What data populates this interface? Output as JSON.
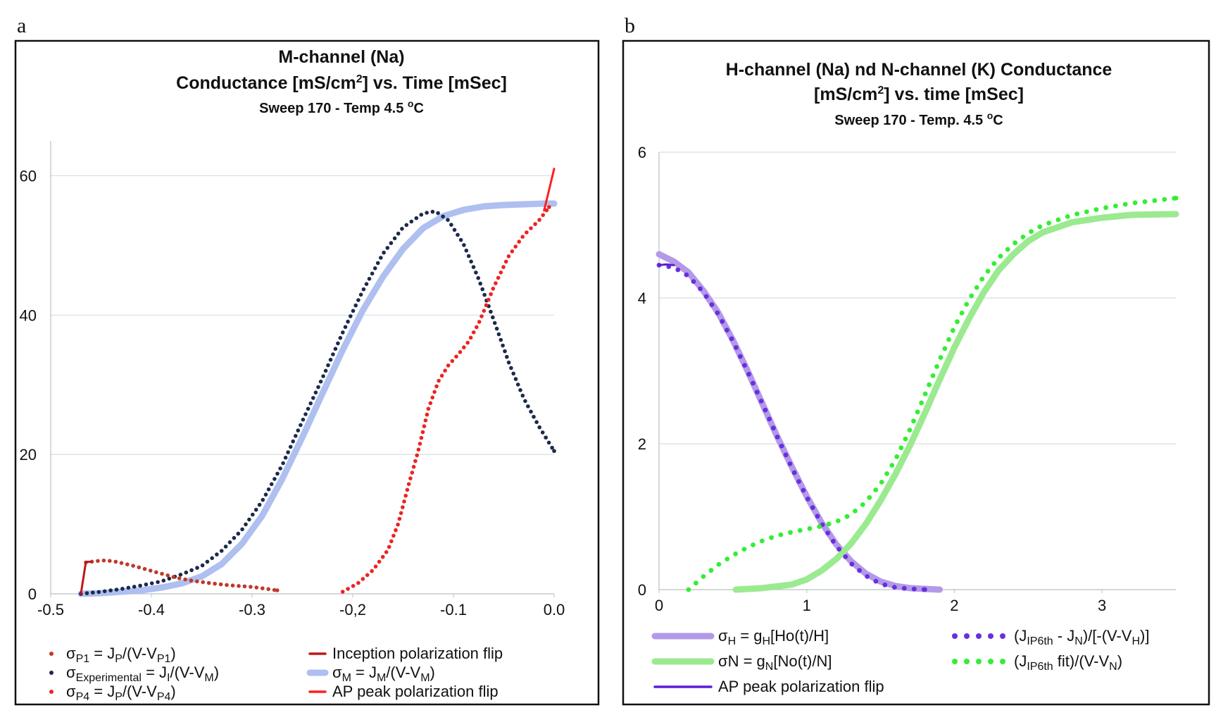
{
  "chart_data": [
    {
      "panel": "a",
      "type": "line",
      "title": {
        "line1": "M-channel (Na)",
        "line2_pre": "Conductance [mS/cm",
        "line2_sup": "2",
        "line2_post": "]  vs. Time [mSec]",
        "line3_pre": "Sweep 170 - Temp 4.5 ",
        "line3_sup": "o",
        "line3_post": "C"
      },
      "xlim": [
        -0.5,
        0.0
      ],
      "ylim": [
        0,
        65
      ],
      "xticks": [
        "-0.5",
        "-0.4",
        "-0.3",
        "-0,2",
        "-0.1",
        "0.0"
      ],
      "xtick_values": [
        -0.5,
        -0.4,
        -0.3,
        -0.2,
        -0.1,
        0.0
      ],
      "yticks": [
        "0",
        "20",
        "40",
        "60"
      ],
      "ytick_values": [
        0,
        20,
        40,
        60
      ],
      "series": [
        {
          "key": "sigmaM",
          "name": "σM = JM/(V-VM)",
          "style": "thick-line",
          "color": "#aebff0",
          "x": [
            -0.47,
            -0.45,
            -0.43,
            -0.41,
            -0.39,
            -0.37,
            -0.35,
            -0.33,
            -0.31,
            -0.29,
            -0.27,
            -0.25,
            -0.23,
            -0.21,
            -0.19,
            -0.17,
            -0.15,
            -0.13,
            -0.11,
            -0.09,
            -0.07,
            -0.05,
            -0.03,
            -0.01,
            0.0
          ],
          "y": [
            0,
            0.1,
            0.3,
            0.5,
            0.9,
            1.5,
            2.5,
            4.3,
            7.2,
            11.2,
            16.5,
            22.5,
            28.8,
            35.0,
            40.7,
            45.5,
            49.5,
            52.5,
            54.2,
            55.1,
            55.6,
            55.8,
            55.9,
            56.0,
            56.0
          ]
        },
        {
          "key": "sigmaExp",
          "name": "σExperimental = JI/(V-VM)",
          "style": "dots",
          "color": "#1b2a4a",
          "x": [
            -0.47,
            -0.45,
            -0.43,
            -0.41,
            -0.39,
            -0.37,
            -0.35,
            -0.33,
            -0.31,
            -0.29,
            -0.27,
            -0.25,
            -0.23,
            -0.21,
            -0.19,
            -0.17,
            -0.15,
            -0.13,
            -0.118,
            -0.105,
            -0.09,
            -0.075,
            -0.06,
            -0.045,
            -0.03,
            -0.015,
            0.0
          ],
          "y": [
            0,
            0.3,
            0.7,
            1.2,
            1.8,
            2.8,
            4.0,
            6.2,
            9.2,
            13.3,
            18.5,
            24.8,
            31.0,
            37.5,
            43.5,
            48.8,
            52.6,
            54.6,
            54.9,
            53.6,
            50.2,
            45.2,
            39.3,
            33.2,
            28.0,
            24.0,
            20.5
          ]
        },
        {
          "key": "sigmaP1",
          "name": "σP1 = JP/(V-VP1)",
          "style": "dots",
          "color": "#c0392b",
          "x": [
            -0.465,
            -0.455,
            -0.445,
            -0.435,
            -0.42,
            -0.405,
            -0.39,
            -0.375,
            -0.36,
            -0.34,
            -0.32,
            -0.3,
            -0.275
          ],
          "y": [
            4.5,
            4.7,
            4.8,
            4.6,
            4.1,
            3.5,
            2.9,
            2.3,
            1.9,
            1.5,
            1.2,
            1.0,
            0.5
          ]
        },
        {
          "key": "sigmaP4",
          "name": "σP4 = JP/(V-VP4)",
          "style": "dots",
          "color": "#ee2222",
          "x": [
            -0.21,
            -0.195,
            -0.18,
            -0.165,
            -0.155,
            -0.145,
            -0.135,
            -0.125,
            -0.115,
            -0.105,
            -0.095,
            -0.085,
            -0.075,
            -0.06,
            -0.045,
            -0.03,
            -0.015,
            -0.005
          ],
          "y": [
            0.3,
            1.5,
            3.4,
            6.3,
            10.0,
            15.4,
            20.5,
            26.5,
            30.5,
            32.8,
            34.4,
            36.2,
            38.8,
            44.0,
            48.5,
            51.5,
            53.6,
            55.5
          ]
        },
        {
          "key": "inception",
          "name": "Inception polarization flip",
          "style": "line",
          "color": "#c01818",
          "x": [
            -0.47,
            -0.465,
            -0.46
          ],
          "y": [
            0,
            4.6,
            4.6
          ]
        },
        {
          "key": "apPeak",
          "name": "AP peak polarization flip",
          "style": "line",
          "color": "#ff2020",
          "x": [
            -0.01,
            -0.005,
            0.0
          ],
          "y": [
            55.0,
            58.0,
            61.0
          ]
        }
      ],
      "legend": [
        {
          "key": "sigmaP1",
          "pre": "σ",
          "sub": "P1",
          "mid": " = J",
          "sub2": "P",
          "post": "/(V-V",
          "sub3": "P1",
          "end": ")"
        },
        {
          "key": "sigmaExp",
          "pre": "σ",
          "sub": "Experimental",
          "mid": " = J",
          "sub2": "I",
          "post": "/(V-V",
          "sub3": "M",
          "end": ")"
        },
        {
          "key": "sigmaP4",
          "pre": "σ",
          "sub": "P4",
          "mid": " = J",
          "sub2": "P",
          "post": "/(V-V",
          "sub3": "P4",
          "end": ")"
        },
        {
          "key": "inception",
          "pre": "Inception polarization flip",
          "sub": "",
          "mid": "",
          "sub2": "",
          "post": "",
          "sub3": "",
          "end": ""
        },
        {
          "key": "sigmaM",
          "pre": "σ",
          "sub": "M",
          "mid": " = J",
          "sub2": "M",
          "post": "/(V-V",
          "sub3": "M",
          "end": ")"
        },
        {
          "key": "apPeak",
          "pre": "AP peak polarization flip",
          "sub": "",
          "mid": "",
          "sub2": "",
          "post": "",
          "sub3": "",
          "end": ""
        }
      ]
    },
    {
      "panel": "b",
      "type": "line",
      "title": {
        "line1": "H-channel (Na) nd N-channel (K) Conductance",
        "line2_pre": "[mS/cm",
        "line2_sup": "2",
        "line2_post": "]  vs. time [mSec]",
        "line3_pre": "Sweep 170 - Temp. 4.5 ",
        "line3_sup": "o",
        "line3_post": "C"
      },
      "xlim": [
        0,
        3.5
      ],
      "ylim": [
        0,
        6
      ],
      "xticks": [
        "0",
        "1",
        "2",
        "3"
      ],
      "xtick_values": [
        0,
        1,
        2,
        3
      ],
      "yticks": [
        "0",
        "2",
        "4",
        "6"
      ],
      "ytick_values": [
        0,
        2,
        4,
        6
      ],
      "series": [
        {
          "key": "sigmaH",
          "name": "σH = gH[Ho(t)/H]",
          "style": "thick-line",
          "color": "#b39ae8",
          "x": [
            0,
            0.1,
            0.2,
            0.3,
            0.4,
            0.5,
            0.6,
            0.7,
            0.8,
            0.9,
            1.0,
            1.1,
            1.2,
            1.3,
            1.4,
            1.5,
            1.6,
            1.7,
            1.8,
            1.9
          ],
          "y": [
            4.6,
            4.5,
            4.35,
            4.1,
            3.8,
            3.42,
            3.0,
            2.55,
            2.1,
            1.68,
            1.28,
            0.92,
            0.62,
            0.39,
            0.22,
            0.11,
            0.05,
            0.02,
            0.01,
            0.0
          ]
        },
        {
          "key": "sigmaN",
          "name": "σN = gN[No(t)/N]",
          "style": "thick-line",
          "color": "#9bea90",
          "x": [
            0.52,
            0.7,
            0.9,
            1.0,
            1.1,
            1.2,
            1.3,
            1.4,
            1.5,
            1.6,
            1.7,
            1.8,
            1.9,
            2.0,
            2.1,
            2.2,
            2.3,
            2.4,
            2.5,
            2.6,
            2.8,
            3.0,
            3.2,
            3.5
          ],
          "y": [
            0.0,
            0.02,
            0.07,
            0.14,
            0.26,
            0.42,
            0.63,
            0.9,
            1.22,
            1.58,
            1.98,
            2.42,
            2.88,
            3.32,
            3.72,
            4.08,
            4.38,
            4.6,
            4.78,
            4.9,
            5.04,
            5.1,
            5.14,
            5.15
          ]
        },
        {
          "key": "hFit",
          "name": "(JIP6th - JN)/[-(V-VH)]",
          "style": "dots",
          "color": "#6a2ee0",
          "x": [
            0,
            0.1,
            0.2,
            0.3,
            0.4,
            0.5,
            0.6,
            0.7,
            0.8,
            0.9,
            1.0,
            1.1,
            1.2,
            1.3,
            1.4,
            1.5,
            1.6,
            1.7,
            1.8
          ],
          "y": [
            4.45,
            4.42,
            4.3,
            4.08,
            3.78,
            3.41,
            2.99,
            2.55,
            2.1,
            1.67,
            1.27,
            0.91,
            0.6,
            0.36,
            0.19,
            0.08,
            0.03,
            0.01,
            0.0
          ]
        },
        {
          "key": "nFit",
          "name": "(JIP6th fit)/(V-VN)",
          "style": "dots",
          "color": "#33ee33",
          "x": [
            0.2,
            0.3,
            0.4,
            0.5,
            0.6,
            0.7,
            0.8,
            0.9,
            1.0,
            1.1,
            1.2,
            1.3,
            1.4,
            1.5,
            1.6,
            1.7,
            1.8,
            1.9,
            2.0,
            2.1,
            2.2,
            2.3,
            2.4,
            2.5,
            2.6,
            2.8,
            3.0,
            3.2,
            3.5
          ],
          "y": [
            0.0,
            0.18,
            0.34,
            0.47,
            0.58,
            0.67,
            0.74,
            0.79,
            0.83,
            0.87,
            0.93,
            1.03,
            1.2,
            1.45,
            1.78,
            2.2,
            2.67,
            3.15,
            3.6,
            3.98,
            4.3,
            4.55,
            4.74,
            4.89,
            5.0,
            5.14,
            5.23,
            5.3,
            5.37
          ]
        },
        {
          "key": "apPeakB",
          "name": "AP  peak polarization flip",
          "style": "line",
          "color": "#5a1fd8",
          "x": [
            0,
            0.05,
            0.1
          ],
          "y": [
            4.45,
            4.46,
            4.45
          ]
        }
      ],
      "legend": [
        {
          "key": "sigmaH",
          "pre": "σ",
          "sub": "H",
          "mid": " = g",
          "sub2": "H",
          "post": "[Ho(t)/H]",
          "sub3": "",
          "end": ""
        },
        {
          "key": "sigmaN",
          "pre": "σN = g",
          "sub": "N",
          "mid": "[No(t)/N]",
          "sub2": "",
          "post": "",
          "sub3": "",
          "end": ""
        },
        {
          "key": "apPeakB",
          "pre": "AP  peak polarization flip",
          "sub": "",
          "mid": "",
          "sub2": "",
          "post": "",
          "sub3": "",
          "end": ""
        },
        {
          "key": "hFit",
          "pre": "(J",
          "sub": "IP6th",
          "mid": " - J",
          "sub2": "N",
          "post": ")/[-(V-V",
          "sub3": "H",
          "end": ")]"
        },
        {
          "key": "nFit",
          "pre": "(J",
          "sub": "IP6th",
          "mid": " fit)/(V-V",
          "sub2": "N",
          "post": ")",
          "sub3": "",
          "end": ""
        }
      ]
    }
  ],
  "panel_labels": {
    "a": "a",
    "b": "b"
  }
}
